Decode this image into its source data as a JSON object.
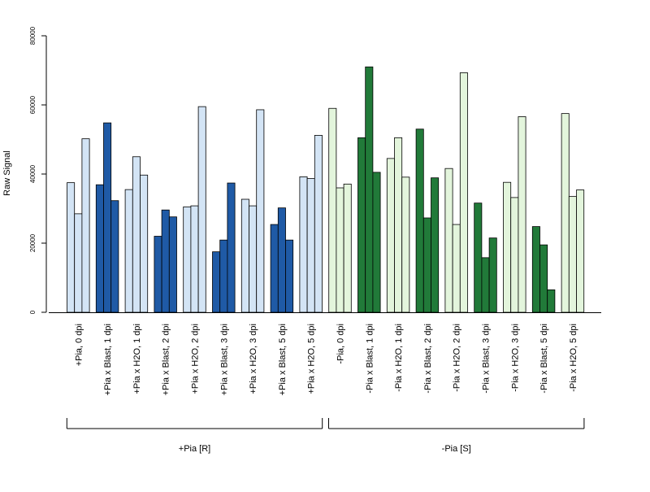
{
  "chart_data": {
    "type": "bar",
    "ylabel": "Raw Signal",
    "ylim": [
      0,
      80000
    ],
    "yticks": [
      0,
      20000,
      40000,
      60000,
      80000
    ],
    "ytick_labels": [
      "0",
      "20000",
      "40000",
      "60000",
      "80000"
    ],
    "grid": false,
    "legend": "none",
    "categories": [
      "+Pia, 0 dpi",
      "+Pia x Blast, 1 dpi",
      "+Pia x H2O, 1 dpi",
      "+Pia x Blast, 2 dpi",
      "+Pia x H2O, 2 dpi",
      "+Pia x Blast, 3 dpi",
      "+Pia x H2O, 3 dpi",
      "+Pia x Blast, 5 dpi",
      "+Pia x H2O, 5 dpi",
      "-Pia, 0 dpi",
      "-Pia x Blast, 1 dpi",
      "-Pia x H2O, 1 dpi",
      "-Pia x Blast, 2 dpi",
      "-Pia x H2O, 2 dpi",
      "-Pia x Blast, 3 dpi",
      "-Pia x H2O, 3 dpi",
      "-Pia x Blast, 5 dpi",
      "-Pia x H2O, 5 dpi"
    ],
    "values": [
      [
        37500,
        28500,
        50200
      ],
      [
        36900,
        54800,
        32300
      ],
      [
        35500,
        45000,
        39700
      ],
      [
        22000,
        29600,
        27600
      ],
      [
        30500,
        30800,
        59500
      ],
      [
        17500,
        20900,
        37400
      ],
      [
        32700,
        30800,
        58600
      ],
      [
        25400,
        30200,
        20900
      ],
      [
        39200,
        38700,
        51200
      ],
      [
        59000,
        36000,
        37100
      ],
      [
        50500,
        71000,
        40500
      ],
      [
        44500,
        50500,
        39100
      ],
      [
        53000,
        27300,
        38900
      ],
      [
        41600,
        25400,
        69300
      ],
      [
        31600,
        15800,
        21500
      ],
      [
        37600,
        33200,
        56600
      ],
      [
        24800,
        19500,
        6500
      ],
      [
        57500,
        33500,
        35400
      ]
    ],
    "colors": [
      "#d3e4f5",
      "#1f5aa6",
      "#d3e4f5",
      "#1f5aa6",
      "#d3e4f5",
      "#1f5aa6",
      "#d3e4f5",
      "#1f5aa6",
      "#d3e4f5",
      "#e3f5dc",
      "#217a39",
      "#e3f5dc",
      "#217a39",
      "#e3f5dc",
      "#217a39",
      "#e3f5dc",
      "#217a39",
      "#e3f5dc"
    ],
    "groups": [
      {
        "label": "+Pia [R]",
        "from": 0,
        "to": 8
      },
      {
        "label": "-Pia [S]",
        "from": 9,
        "to": 17
      }
    ]
  }
}
